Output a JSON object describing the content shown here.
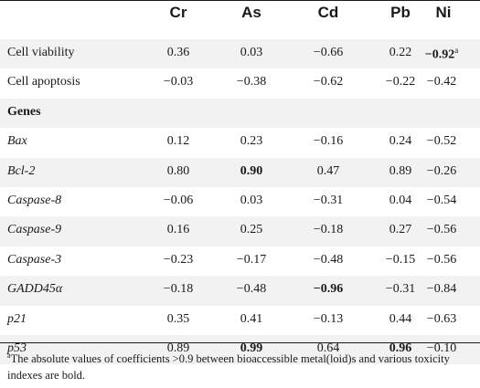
{
  "table": {
    "columns": [
      "Cr",
      "As",
      "Cd",
      "Pb",
      "Ni"
    ],
    "rows": [
      {
        "label": "Cell viability",
        "style": "normal",
        "values": [
          "0.36",
          "0.03",
          "−0.66",
          "0.22",
          "−0.92"
        ],
        "bold": [
          false,
          false,
          false,
          false,
          true
        ],
        "sup": [
          "",
          "",
          "",
          "",
          "a"
        ]
      },
      {
        "label": "Cell apoptosis",
        "style": "normal",
        "values": [
          "−0.03",
          "−0.38",
          "−0.62",
          "−0.22",
          "−0.42"
        ],
        "bold": [
          false,
          false,
          false,
          false,
          false
        ],
        "sup": [
          "",
          "",
          "",
          "",
          ""
        ]
      },
      {
        "label": "Genes",
        "style": "bold",
        "values": [
          "",
          "",
          "",
          "",
          ""
        ],
        "bold": [
          false,
          false,
          false,
          false,
          false
        ],
        "sup": [
          "",
          "",
          "",
          "",
          ""
        ]
      },
      {
        "label": "Bax",
        "style": "italic",
        "values": [
          "0.12",
          "0.23",
          "−0.16",
          "0.24",
          "−0.52"
        ],
        "bold": [
          false,
          false,
          false,
          false,
          false
        ],
        "sup": [
          "",
          "",
          "",
          "",
          ""
        ]
      },
      {
        "label": "Bcl-2",
        "style": "italic",
        "values": [
          "0.80",
          "0.90",
          "0.47",
          "0.89",
          "−0.26"
        ],
        "bold": [
          false,
          true,
          false,
          false,
          false
        ],
        "sup": [
          "",
          "",
          "",
          "",
          ""
        ]
      },
      {
        "label": "Caspase-8",
        "style": "italic",
        "values": [
          "−0.06",
          "0.03",
          "−0.31",
          "0.04",
          "−0.54"
        ],
        "bold": [
          false,
          false,
          false,
          false,
          false
        ],
        "sup": [
          "",
          "",
          "",
          "",
          ""
        ]
      },
      {
        "label": "Caspase-9",
        "style": "italic",
        "values": [
          "0.16",
          "0.25",
          "−0.18",
          "0.27",
          "−0.56"
        ],
        "bold": [
          false,
          false,
          false,
          false,
          false
        ],
        "sup": [
          "",
          "",
          "",
          "",
          ""
        ]
      },
      {
        "label": "Caspase-3",
        "style": "italic",
        "values": [
          "−0.23",
          "−0.17",
          "−0.48",
          "−0.15",
          "−0.56"
        ],
        "bold": [
          false,
          false,
          false,
          false,
          false
        ],
        "sup": [
          "",
          "",
          "",
          "",
          ""
        ]
      },
      {
        "label": "GADD45α",
        "style": "italic",
        "values": [
          "−0.18",
          "−0.48",
          "−0.96",
          "−0.31",
          "−0.84"
        ],
        "bold": [
          false,
          false,
          true,
          false,
          false
        ],
        "sup": [
          "",
          "",
          "",
          "",
          ""
        ]
      },
      {
        "label": "p21",
        "style": "italic",
        "values": [
          "0.35",
          "0.41",
          "−0.13",
          "0.44",
          "−0.63"
        ],
        "bold": [
          false,
          false,
          false,
          false,
          false
        ],
        "sup": [
          "",
          "",
          "",
          "",
          ""
        ]
      },
      {
        "label": "p53",
        "style": "italic",
        "values": [
          "0.89",
          "0.99",
          "0.64",
          "0.96",
          "−0.10"
        ],
        "bold": [
          false,
          true,
          false,
          true,
          false
        ],
        "sup": [
          "",
          "",
          "",
          "",
          ""
        ]
      }
    ],
    "footnote_marker": "a",
    "footnote_text": "The absolute values of coefficients >0.9 between bioaccessible metal(loid)s and various toxicity indexes are bold.",
    "shade_color": "#f2f2f2"
  }
}
